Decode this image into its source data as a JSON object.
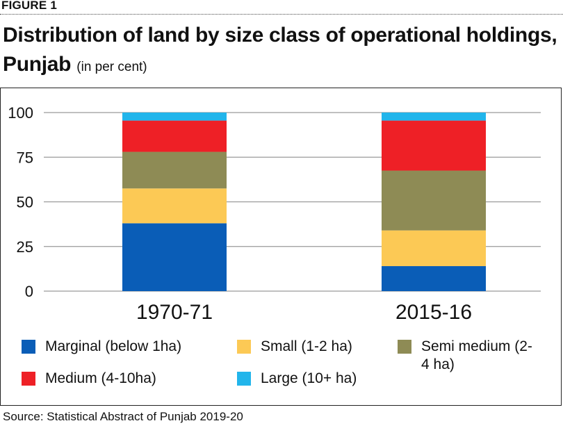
{
  "figure_label": "FIGURE 1",
  "title_main": "Distribution of land by size class of operational holdings, Punjab",
  "title_unit": "(in per cent)",
  "source": "Source: Statistical Abstract of Punjab 2019-20",
  "colors": {
    "marginal": "#0a5db7",
    "small": "#fcc955",
    "semi_medium": "#8e8b55",
    "medium": "#ee2026",
    "large": "#22b5eb",
    "grid": "#9a9a9a"
  },
  "legend": [
    {
      "key": "marginal",
      "label": "Marginal (below 1ha)"
    },
    {
      "key": "small",
      "label": "Small (1-2 ha)"
    },
    {
      "key": "semi_medium",
      "label": "Semi medium (2-4 ha)"
    },
    {
      "key": "medium",
      "label": "Medium (4-10ha)"
    },
    {
      "key": "large",
      "label": "Large (10+ ha)"
    }
  ],
  "chart_data": {
    "type": "bar",
    "stacked": true,
    "title": "Distribution of land by size class of operational holdings, Punjab",
    "xlabel": "",
    "ylabel": "",
    "ylim": [
      0,
      100
    ],
    "yticks": [
      0,
      25,
      50,
      75,
      100
    ],
    "categories": [
      "1970-71",
      "2015-16"
    ],
    "series": [
      {
        "key": "marginal",
        "name": "Marginal (below 1ha)",
        "values": [
          38,
          14
        ]
      },
      {
        "key": "small",
        "name": "Small (1-2 ha)",
        "values": [
          19.5,
          20
        ]
      },
      {
        "key": "semi_medium",
        "name": "Semi medium (2-4 ha)",
        "values": [
          20.5,
          33.5
        ]
      },
      {
        "key": "medium",
        "name": "Medium (4-10ha)",
        "values": [
          17.5,
          28
        ]
      },
      {
        "key": "large",
        "name": "Large (10+ ha)",
        "values": [
          4.5,
          4.5
        ]
      }
    ]
  }
}
